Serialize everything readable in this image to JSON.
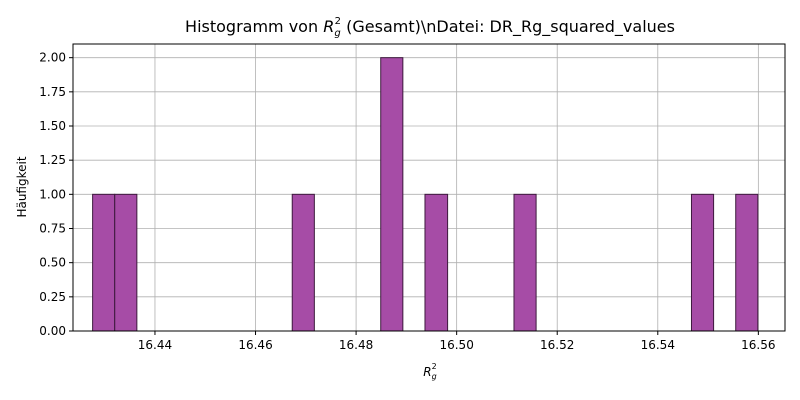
{
  "chart_data": {
    "type": "bar",
    "subtype": "histogram",
    "title_prefix": "Histogramm von ",
    "title_symbol": "R",
    "title_sub": "g",
    "title_sup": "2",
    "title_suffix": " (Gesamt)\\nDatei: DR_Rg_squared_values",
    "xlabel_symbol": "R",
    "xlabel_sub": "g",
    "xlabel_sup": "2",
    "ylabel": "Häufigkeit",
    "xlim": [
      16.4237,
      16.5653
    ],
    "ylim": [
      0,
      2.1
    ],
    "xticks": [
      16.44,
      16.46,
      16.48,
      16.5,
      16.52,
      16.54,
      16.56
    ],
    "xtick_labels": [
      "16.44",
      "16.46",
      "16.48",
      "16.50",
      "16.52",
      "16.54",
      "16.56"
    ],
    "yticks": [
      0,
      0.25,
      0.5,
      0.75,
      1.0,
      1.25,
      1.5,
      1.75,
      2.0
    ],
    "ytick_labels": [
      "0.00",
      "0.25",
      "0.50",
      "0.75",
      "1.00",
      "1.25",
      "1.50",
      "1.75",
      "2.00"
    ],
    "grid": true,
    "bins": [
      {
        "start": 16.4276,
        "end": 16.432,
        "count": 1
      },
      {
        "start": 16.432,
        "end": 16.4364,
        "count": 1
      },
      {
        "start": 16.4673,
        "end": 16.4717,
        "count": 1
      },
      {
        "start": 16.4849,
        "end": 16.4893,
        "count": 2
      },
      {
        "start": 16.4937,
        "end": 16.4982,
        "count": 1
      },
      {
        "start": 16.5114,
        "end": 16.5158,
        "count": 1
      },
      {
        "start": 16.5467,
        "end": 16.5511,
        "count": 1
      },
      {
        "start": 16.5555,
        "end": 16.5599,
        "count": 1
      }
    ],
    "colors": {
      "bar_fill": "#a64ca6",
      "bar_edge": "#3d1a3d"
    }
  }
}
